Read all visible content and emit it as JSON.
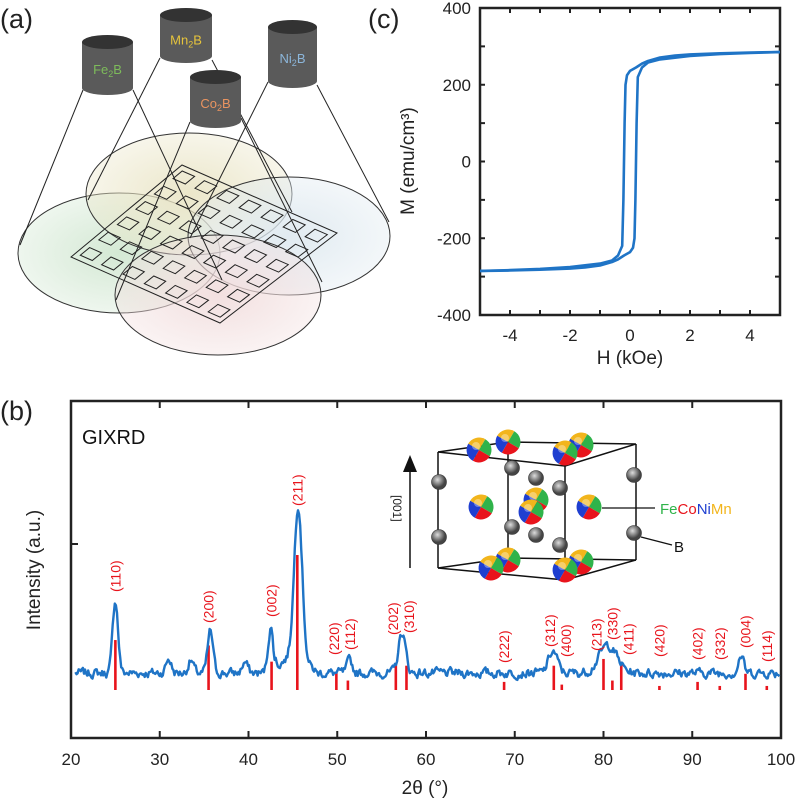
{
  "panel_labels": {
    "a": "(a)",
    "b": "(b)",
    "c": "(c)"
  },
  "panel_a": {
    "targets": [
      {
        "element": "Fe",
        "sub": "2",
        "rest": "B",
        "color": "#7dbb5a",
        "ellipse_color": "#cfe6cf"
      },
      {
        "element": "Mn",
        "sub": "2",
        "rest": "B",
        "color": "#e6c43c",
        "ellipse_color": "#e9e4c4"
      },
      {
        "element": "Co",
        "sub": "2",
        "rest": "B",
        "color": "#ea9460",
        "ellipse_color": "#f1dcdc"
      },
      {
        "element": "Ni",
        "sub": "2",
        "rest": "B",
        "color": "#8cb6da",
        "ellipse_color": "#dde8ef"
      }
    ]
  },
  "chart_data": [
    {
      "id": "b",
      "type": "line",
      "title": "",
      "annotation": "GIXRD",
      "xlabel": "2θ (°)",
      "ylabel": "Intensity (a.u.)",
      "xlim": [
        20,
        100
      ],
      "xticks": [
        20,
        30,
        40,
        50,
        60,
        70,
        80,
        90,
        100
      ],
      "yticks": [],
      "color": "#1f74c6",
      "reference_color": "#e8141c",
      "measured_peaks": [
        {
          "x": 25.0,
          "y": 47
        },
        {
          "x": 31.0,
          "y": 9
        },
        {
          "x": 33.5,
          "y": 8
        },
        {
          "x": 35.7,
          "y": 27
        },
        {
          "x": 39.6,
          "y": 7
        },
        {
          "x": 42.5,
          "y": 29
        },
        {
          "x": 45.6,
          "y": 100
        },
        {
          "x": 51.4,
          "y": 8
        },
        {
          "x": 57.3,
          "y": 26
        },
        {
          "x": 74.3,
          "y": 14
        },
        {
          "x": 80.5,
          "y": 18
        },
        {
          "x": 95.5,
          "y": 11
        }
      ],
      "reference_peaks": [
        {
          "hkl": "(110)",
          "x": 25.0,
          "y": 37
        },
        {
          "hkl": "(200)",
          "x": 35.5,
          "y": 33
        },
        {
          "hkl": "(002)",
          "x": 42.6,
          "y": 21
        },
        {
          "hkl": "(211)",
          "x": 45.5,
          "y": 100
        },
        {
          "hkl": "(220)",
          "x": 49.9,
          "y": 13
        },
        {
          "hkl": "(112)",
          "x": 51.2,
          "y": 7
        },
        {
          "hkl": "(202)",
          "x": 56.6,
          "y": 19
        },
        {
          "hkl": "(310)",
          "x": 57.8,
          "y": 18
        },
        {
          "hkl": "(222)",
          "x": 68.8,
          "y": 6
        },
        {
          "hkl": "(312)",
          "x": 74.4,
          "y": 18
        },
        {
          "hkl": "(400)",
          "x": 75.3,
          "y": 4
        },
        {
          "hkl": "(213)",
          "x": 80.0,
          "y": 23
        },
        {
          "hkl": "(330)",
          "x": 81.0,
          "y": 7
        },
        {
          "hkl": "(411)",
          "x": 82.0,
          "y": 21
        },
        {
          "hkl": "(420)",
          "x": 86.3,
          "y": 3
        },
        {
          "hkl": "(402)",
          "x": 90.6,
          "y": 6
        },
        {
          "hkl": "(332)",
          "x": 93.1,
          "y": 3
        },
        {
          "hkl": "(004)",
          "x": 96.0,
          "y": 12
        },
        {
          "hkl": "(114)",
          "x": 98.4,
          "y": 3
        }
      ],
      "inset": {
        "direction_label": "[001]",
        "metal_label": [
          "Fe",
          "Co",
          "Ni",
          "Mn"
        ],
        "metal_colors": [
          "#2fb34a",
          "#e8141c",
          "#1f3fd0",
          "#f2b51c"
        ],
        "boron_label": "B"
      }
    },
    {
      "id": "c",
      "type": "line",
      "title": "",
      "xlabel": "H (kOe)",
      "ylabel": "M (emu/cm³)",
      "xlim": [
        -5,
        5
      ],
      "ylim": [
        -400,
        400
      ],
      "xticks": [
        -4,
        -2,
        0,
        2,
        4
      ],
      "yticks": [
        -400,
        -200,
        0,
        200,
        400
      ],
      "color": "#1f74c6",
      "series": [
        {
          "points": [
            [
              5,
              285
            ],
            [
              4,
              284
            ],
            [
              3,
              282
            ],
            [
              2,
              279
            ],
            [
              1.5,
              276
            ],
            [
              1,
              271
            ],
            [
              0.6,
              262
            ],
            [
              0.4,
              255
            ],
            [
              0.2,
              245
            ],
            [
              0,
              236
            ],
            [
              -0.1,
              225
            ],
            [
              -0.15,
              200
            ],
            [
              -0.18,
              100
            ],
            [
              -0.2,
              0
            ],
            [
              -0.22,
              -100
            ],
            [
              -0.26,
              -220
            ],
            [
              -0.4,
              -245
            ],
            [
              -0.6,
              -258
            ],
            [
              -1,
              -266
            ],
            [
              -2,
              -275
            ],
            [
              -3,
              -280
            ],
            [
              -4,
              -283
            ],
            [
              -5,
              -285
            ]
          ]
        },
        {
          "points": [
            [
              -5,
              -285
            ],
            [
              -4,
              -284
            ],
            [
              -3,
              -282
            ],
            [
              -2,
              -279
            ],
            [
              -1.5,
              -276
            ],
            [
              -1,
              -271
            ],
            [
              -0.6,
              -262
            ],
            [
              -0.4,
              -255
            ],
            [
              -0.2,
              -245
            ],
            [
              0,
              -236
            ],
            [
              0.1,
              -225
            ],
            [
              0.15,
              -200
            ],
            [
              0.18,
              -100
            ],
            [
              0.2,
              0
            ],
            [
              0.22,
              100
            ],
            [
              0.26,
              220
            ],
            [
              0.4,
              245
            ],
            [
              0.6,
              258
            ],
            [
              1,
              266
            ],
            [
              2,
              275
            ],
            [
              3,
              280
            ],
            [
              4,
              283
            ],
            [
              5,
              285
            ]
          ]
        }
      ]
    }
  ]
}
